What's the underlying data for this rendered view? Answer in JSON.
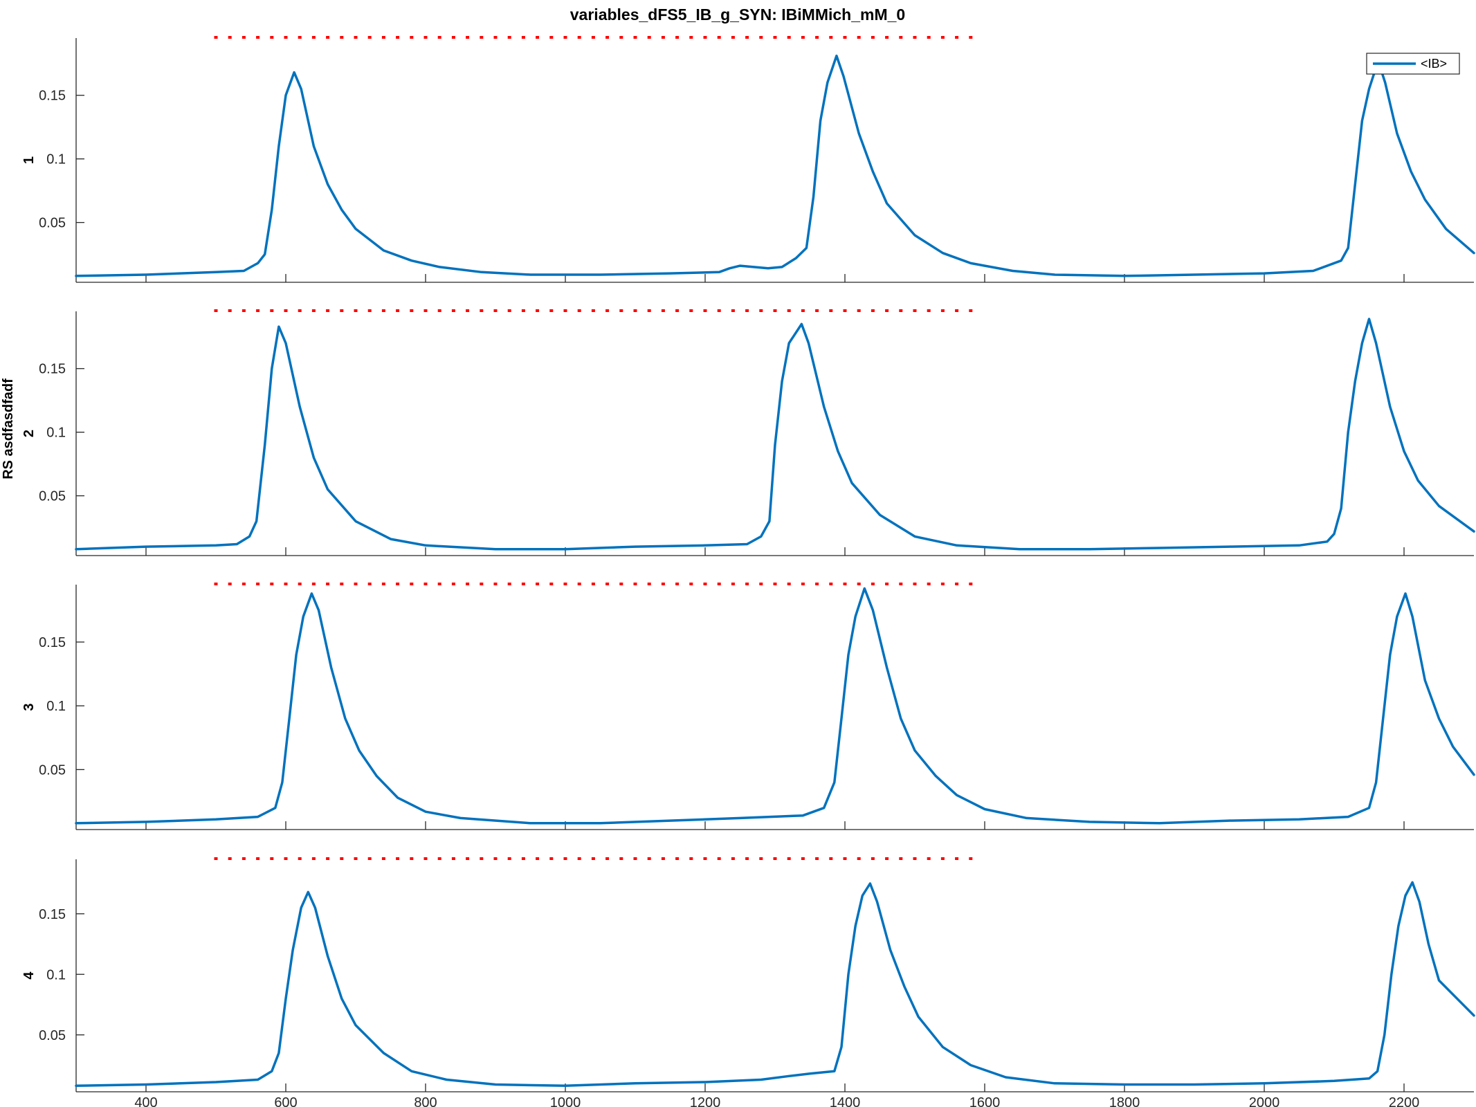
{
  "chart_data": {
    "type": "line",
    "title": "variables_dFS5_IB_g_SYN: IBiMMich_mM_0",
    "ylabel_shared": "RS asdfasdfadf",
    "legend": {
      "entries": [
        "<IB>"
      ],
      "placement": "top-right"
    },
    "xlim": [
      300,
      2300
    ],
    "xticks": [
      400,
      600,
      800,
      1000,
      1200,
      1400,
      1600,
      1800,
      2000,
      2200
    ],
    "yticks": [
      0.05,
      0.1,
      0.15
    ],
    "grid": false,
    "colors": {
      "series": "#0072BD",
      "marker": "#FF0000",
      "axis": "#262626"
    },
    "dotted_reference": {
      "x_start": 500,
      "x_end": 1580,
      "step": 20,
      "color": "#FF0000"
    },
    "panels": [
      {
        "ylabel": "1",
        "ylim": [
          0.003,
          0.195
        ],
        "series": [
          {
            "name": "<IB>",
            "points": [
              [
                300,
                0.008
              ],
              [
                400,
                0.009
              ],
              [
                500,
                0.011
              ],
              [
                540,
                0.012
              ],
              [
                560,
                0.018
              ],
              [
                570,
                0.025
              ],
              [
                580,
                0.06
              ],
              [
                590,
                0.11
              ],
              [
                600,
                0.15
              ],
              [
                612,
                0.168
              ],
              [
                622,
                0.155
              ],
              [
                640,
                0.11
              ],
              [
                660,
                0.08
              ],
              [
                680,
                0.06
              ],
              [
                700,
                0.045
              ],
              [
                740,
                0.028
              ],
              [
                780,
                0.02
              ],
              [
                820,
                0.015
              ],
              [
                880,
                0.011
              ],
              [
                950,
                0.009
              ],
              [
                1050,
                0.009
              ],
              [
                1150,
                0.01
              ],
              [
                1220,
                0.011
              ],
              [
                1235,
                0.014
              ],
              [
                1250,
                0.016
              ],
              [
                1290,
                0.014
              ],
              [
                1310,
                0.015
              ],
              [
                1330,
                0.022
              ],
              [
                1345,
                0.03
              ],
              [
                1355,
                0.07
              ],
              [
                1365,
                0.13
              ],
              [
                1375,
                0.16
              ],
              [
                1388,
                0.181
              ],
              [
                1398,
                0.165
              ],
              [
                1420,
                0.12
              ],
              [
                1440,
                0.09
              ],
              [
                1460,
                0.065
              ],
              [
                1500,
                0.04
              ],
              [
                1540,
                0.026
              ],
              [
                1580,
                0.018
              ],
              [
                1640,
                0.012
              ],
              [
                1700,
                0.009
              ],
              [
                1800,
                0.008
              ],
              [
                1900,
                0.009
              ],
              [
                2000,
                0.01
              ],
              [
                2070,
                0.012
              ],
              [
                2110,
                0.02
              ],
              [
                2120,
                0.03
              ],
              [
                2130,
                0.08
              ],
              [
                2140,
                0.13
              ],
              [
                2150,
                0.155
              ],
              [
                2163,
                0.177
              ],
              [
                2173,
                0.16
              ],
              [
                2190,
                0.12
              ],
              [
                2210,
                0.09
              ],
              [
                2230,
                0.068
              ],
              [
                2260,
                0.045
              ],
              [
                2300,
                0.026
              ]
            ]
          }
        ]
      },
      {
        "ylabel": "2",
        "ylim": [
          0.003,
          0.195
        ],
        "series": [
          {
            "name": "<IB>",
            "points": [
              [
                300,
                0.008
              ],
              [
                400,
                0.01
              ],
              [
                500,
                0.011
              ],
              [
                530,
                0.012
              ],
              [
                548,
                0.018
              ],
              [
                558,
                0.03
              ],
              [
                570,
                0.09
              ],
              [
                580,
                0.15
              ],
              [
                590,
                0.183
              ],
              [
                600,
                0.17
              ],
              [
                620,
                0.12
              ],
              [
                640,
                0.08
              ],
              [
                660,
                0.055
              ],
              [
                700,
                0.03
              ],
              [
                750,
                0.016
              ],
              [
                800,
                0.011
              ],
              [
                900,
                0.008
              ],
              [
                1000,
                0.008
              ],
              [
                1100,
                0.01
              ],
              [
                1200,
                0.011
              ],
              [
                1260,
                0.012
              ],
              [
                1280,
                0.018
              ],
              [
                1292,
                0.03
              ],
              [
                1300,
                0.09
              ],
              [
                1310,
                0.14
              ],
              [
                1320,
                0.17
              ],
              [
                1338,
                0.185
              ],
              [
                1348,
                0.17
              ],
              [
                1370,
                0.12
              ],
              [
                1390,
                0.085
              ],
              [
                1410,
                0.06
              ],
              [
                1450,
                0.035
              ],
              [
                1500,
                0.018
              ],
              [
                1560,
                0.011
              ],
              [
                1650,
                0.008
              ],
              [
                1750,
                0.008
              ],
              [
                1850,
                0.009
              ],
              [
                1950,
                0.01
              ],
              [
                2050,
                0.011
              ],
              [
                2090,
                0.014
              ],
              [
                2100,
                0.02
              ],
              [
                2110,
                0.04
              ],
              [
                2120,
                0.1
              ],
              [
                2130,
                0.14
              ],
              [
                2140,
                0.17
              ],
              [
                2150,
                0.189
              ],
              [
                2160,
                0.17
              ],
              [
                2180,
                0.12
              ],
              [
                2200,
                0.085
              ],
              [
                2220,
                0.062
              ],
              [
                2250,
                0.042
              ],
              [
                2300,
                0.022
              ]
            ]
          }
        ]
      },
      {
        "ylabel": "3",
        "ylim": [
          0.003,
          0.195
        ],
        "series": [
          {
            "name": "<IB>",
            "points": [
              [
                300,
                0.008
              ],
              [
                400,
                0.009
              ],
              [
                500,
                0.011
              ],
              [
                560,
                0.013
              ],
              [
                585,
                0.02
              ],
              [
                595,
                0.04
              ],
              [
                605,
                0.09
              ],
              [
                615,
                0.14
              ],
              [
                625,
                0.17
              ],
              [
                637,
                0.188
              ],
              [
                647,
                0.175
              ],
              [
                665,
                0.13
              ],
              [
                685,
                0.09
              ],
              [
                705,
                0.065
              ],
              [
                730,
                0.045
              ],
              [
                760,
                0.028
              ],
              [
                800,
                0.017
              ],
              [
                850,
                0.012
              ],
              [
                950,
                0.008
              ],
              [
                1050,
                0.008
              ],
              [
                1150,
                0.01
              ],
              [
                1250,
                0.012
              ],
              [
                1340,
                0.014
              ],
              [
                1370,
                0.02
              ],
              [
                1385,
                0.04
              ],
              [
                1395,
                0.09
              ],
              [
                1405,
                0.14
              ],
              [
                1415,
                0.17
              ],
              [
                1428,
                0.192
              ],
              [
                1440,
                0.175
              ],
              [
                1460,
                0.13
              ],
              [
                1480,
                0.09
              ],
              [
                1500,
                0.065
              ],
              [
                1530,
                0.045
              ],
              [
                1560,
                0.03
              ],
              [
                1600,
                0.019
              ],
              [
                1660,
                0.012
              ],
              [
                1750,
                0.009
              ],
              [
                1850,
                0.008
              ],
              [
                1950,
                0.01
              ],
              [
                2050,
                0.011
              ],
              [
                2120,
                0.013
              ],
              [
                2150,
                0.02
              ],
              [
                2160,
                0.04
              ],
              [
                2170,
                0.09
              ],
              [
                2180,
                0.14
              ],
              [
                2190,
                0.17
              ],
              [
                2202,
                0.188
              ],
              [
                2212,
                0.17
              ],
              [
                2230,
                0.12
              ],
              [
                2250,
                0.09
              ],
              [
                2270,
                0.068
              ],
              [
                2300,
                0.046
              ]
            ]
          }
        ]
      },
      {
        "ylabel": "4",
        "ylim": [
          0.003,
          0.195
        ],
        "series": [
          {
            "name": "<IB>",
            "points": [
              [
                300,
                0.008
              ],
              [
                400,
                0.009
              ],
              [
                500,
                0.011
              ],
              [
                560,
                0.013
              ],
              [
                580,
                0.02
              ],
              [
                590,
                0.035
              ],
              [
                600,
                0.08
              ],
              [
                610,
                0.12
              ],
              [
                622,
                0.155
              ],
              [
                632,
                0.168
              ],
              [
                642,
                0.155
              ],
              [
                660,
                0.115
              ],
              [
                680,
                0.08
              ],
              [
                700,
                0.058
              ],
              [
                740,
                0.035
              ],
              [
                780,
                0.02
              ],
              [
                830,
                0.013
              ],
              [
                900,
                0.009
              ],
              [
                1000,
                0.008
              ],
              [
                1100,
                0.01
              ],
              [
                1200,
                0.011
              ],
              [
                1280,
                0.013
              ],
              [
                1320,
                0.016
              ],
              [
                1350,
                0.018
              ],
              [
                1385,
                0.02
              ],
              [
                1395,
                0.04
              ],
              [
                1405,
                0.1
              ],
              [
                1415,
                0.14
              ],
              [
                1425,
                0.165
              ],
              [
                1436,
                0.175
              ],
              [
                1446,
                0.16
              ],
              [
                1465,
                0.12
              ],
              [
                1485,
                0.09
              ],
              [
                1505,
                0.065
              ],
              [
                1540,
                0.04
              ],
              [
                1580,
                0.025
              ],
              [
                1630,
                0.015
              ],
              [
                1700,
                0.01
              ],
              [
                1800,
                0.009
              ],
              [
                1900,
                0.009
              ],
              [
                2000,
                0.01
              ],
              [
                2100,
                0.012
              ],
              [
                2150,
                0.014
              ],
              [
                2162,
                0.02
              ],
              [
                2172,
                0.05
              ],
              [
                2182,
                0.1
              ],
              [
                2192,
                0.14
              ],
              [
                2202,
                0.165
              ],
              [
                2212,
                0.176
              ],
              [
                2222,
                0.16
              ],
              [
                2235,
                0.125
              ],
              [
                2250,
                0.095
              ],
              [
                2300,
                0.066
              ]
            ]
          }
        ]
      }
    ]
  }
}
